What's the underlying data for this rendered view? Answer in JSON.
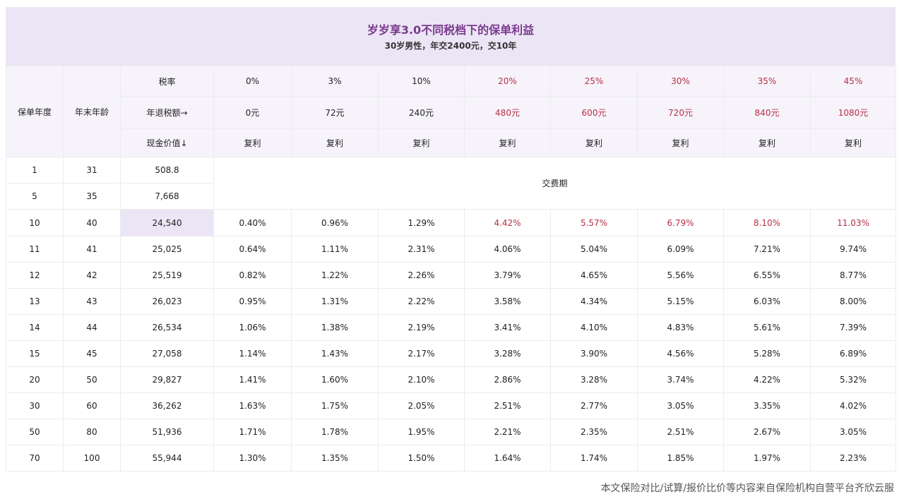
{
  "header": {
    "title": "岁岁享3.0不同税档下的保单利益",
    "subtitle": "30岁男性，年交2400元，交10年"
  },
  "columns": {
    "policy_year": "保单年度",
    "age_end": "年末年龄",
    "rate_label": "税率",
    "tax_refund_label": "年退税额→",
    "cash_value_label": "现金价值↓",
    "rates": [
      "0%",
      "3%",
      "10%",
      "20%",
      "25%",
      "30%",
      "35%",
      "45%"
    ],
    "tax_refunds": [
      "0元",
      "72元",
      "240元",
      "480元",
      "600元",
      "720元",
      "840元",
      "1080元"
    ],
    "types": [
      "复利",
      "复利",
      "复利",
      "复利",
      "复利",
      "复利",
      "复利",
      "复利"
    ],
    "highlight_colors": {
      "normal": "#222222",
      "high": "#b72e44"
    }
  },
  "payment_period_label": "交费期",
  "rows": [
    {
      "year": "1",
      "age": "31",
      "cash": "508.8",
      "vals": []
    },
    {
      "year": "5",
      "age": "35",
      "cash": "7,668",
      "vals": []
    },
    {
      "year": "10",
      "age": "40",
      "cash": "24,540",
      "vals": [
        "0.40%",
        "0.96%",
        "1.29%",
        "4.42%",
        "5.57%",
        "6.79%",
        "8.10%",
        "11.03%"
      ]
    },
    {
      "year": "11",
      "age": "41",
      "cash": "25,025",
      "vals": [
        "0.64%",
        "1.11%",
        "2.31%",
        "4.06%",
        "5.04%",
        "6.09%",
        "7.21%",
        "9.74%"
      ]
    },
    {
      "year": "12",
      "age": "42",
      "cash": "25,519",
      "vals": [
        "0.82%",
        "1.22%",
        "2.26%",
        "3.79%",
        "4.65%",
        "5.56%",
        "6.55%",
        "8.77%"
      ]
    },
    {
      "year": "13",
      "age": "43",
      "cash": "26,023",
      "vals": [
        "0.95%",
        "1.31%",
        "2.22%",
        "3.58%",
        "4.34%",
        "5.15%",
        "6.03%",
        "8.00%"
      ]
    },
    {
      "year": "14",
      "age": "44",
      "cash": "26,534",
      "vals": [
        "1.06%",
        "1.38%",
        "2.19%",
        "3.41%",
        "4.10%",
        "4.83%",
        "5.61%",
        "7.39%"
      ]
    },
    {
      "year": "15",
      "age": "45",
      "cash": "27,058",
      "vals": [
        "1.14%",
        "1.43%",
        "2.17%",
        "3.28%",
        "3.90%",
        "4.56%",
        "5.28%",
        "6.89%"
      ]
    },
    {
      "year": "20",
      "age": "50",
      "cash": "29,827",
      "vals": [
        "1.41%",
        "1.60%",
        "2.10%",
        "2.86%",
        "3.28%",
        "3.74%",
        "4.22%",
        "5.32%"
      ]
    },
    {
      "year": "30",
      "age": "60",
      "cash": "36,262",
      "vals": [
        "1.63%",
        "1.75%",
        "2.05%",
        "2.51%",
        "2.77%",
        "3.05%",
        "3.35%",
        "4.02%"
      ]
    },
    {
      "year": "50",
      "age": "80",
      "cash": "51,936",
      "vals": [
        "1.71%",
        "1.78%",
        "1.95%",
        "2.21%",
        "2.35%",
        "2.51%",
        "2.67%",
        "3.05%"
      ]
    },
    {
      "year": "70",
      "age": "100",
      "cash": "55,944",
      "vals": [
        "1.30%",
        "1.35%",
        "1.50%",
        "1.64%",
        "1.74%",
        "1.85%",
        "1.97%",
        "2.23%"
      ]
    }
  ],
  "footer": "本文保险对比/试算/报价比价等内容来自保险机构自营平台齐欣云服"
}
